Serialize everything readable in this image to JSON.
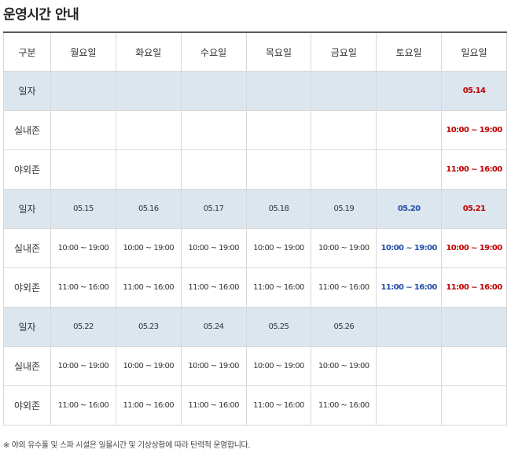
{
  "title": "운영시간 안내",
  "headers": [
    "구분",
    "월요일",
    "화요일",
    "수요일",
    "목요일",
    "금요일",
    "토요일",
    "일요일"
  ],
  "rows": [
    {
      "type": "date",
      "label": "일자",
      "cells": [
        "",
        "",
        "",
        "",
        "",
        "",
        "05.14"
      ]
    },
    {
      "type": "time",
      "label": "실내존",
      "cells": [
        "",
        "",
        "",
        "",
        "",
        "",
        "10:00 ~ 19:00"
      ]
    },
    {
      "type": "time",
      "label": "야외존",
      "cells": [
        "",
        "",
        "",
        "",
        "",
        "",
        "11:00 ~ 16:00"
      ]
    },
    {
      "type": "date",
      "label": "일자",
      "cells": [
        "05.15",
        "05.16",
        "05.17",
        "05.18",
        "05.19",
        "05.20",
        "05.21"
      ]
    },
    {
      "type": "time",
      "label": "실내존",
      "cells": [
        "10:00 ~ 19:00",
        "10:00 ~ 19:00",
        "10:00 ~ 19:00",
        "10:00 ~ 19:00",
        "10:00 ~ 19:00",
        "10:00 ~ 19:00",
        "10:00 ~ 19:00"
      ]
    },
    {
      "type": "time",
      "label": "야외존",
      "cells": [
        "11:00 ~ 16:00",
        "11:00 ~ 16:00",
        "11:00 ~ 16:00",
        "11:00 ~ 16:00",
        "11:00 ~ 16:00",
        "11:00 ~ 16:00",
        "11:00 ~ 16:00"
      ]
    },
    {
      "type": "date",
      "label": "일자",
      "cells": [
        "05.22",
        "05.23",
        "05.24",
        "05.25",
        "05.26",
        "",
        ""
      ]
    },
    {
      "type": "time",
      "label": "실내존",
      "cells": [
        "10:00 ~ 19:00",
        "10:00 ~ 19:00",
        "10:00 ~ 19:00",
        "10:00 ~ 19:00",
        "10:00 ~ 19:00",
        "",
        ""
      ]
    },
    {
      "type": "time",
      "label": "야외존",
      "cells": [
        "11:00 ~ 16:00",
        "11:00 ~ 16:00",
        "11:00 ~ 16:00",
        "11:00 ~ 16:00",
        "11:00 ~ 16:00",
        "",
        ""
      ]
    }
  ],
  "colors": {
    "saturday": "#1f4fa8",
    "sunday": "#c00000",
    "date_row_bg": "#dce6ef"
  },
  "note": "※ 야외 유수풀 및 스파 시설은 일몰시간 및 기상상황에 따라 탄력적 운영합니다."
}
